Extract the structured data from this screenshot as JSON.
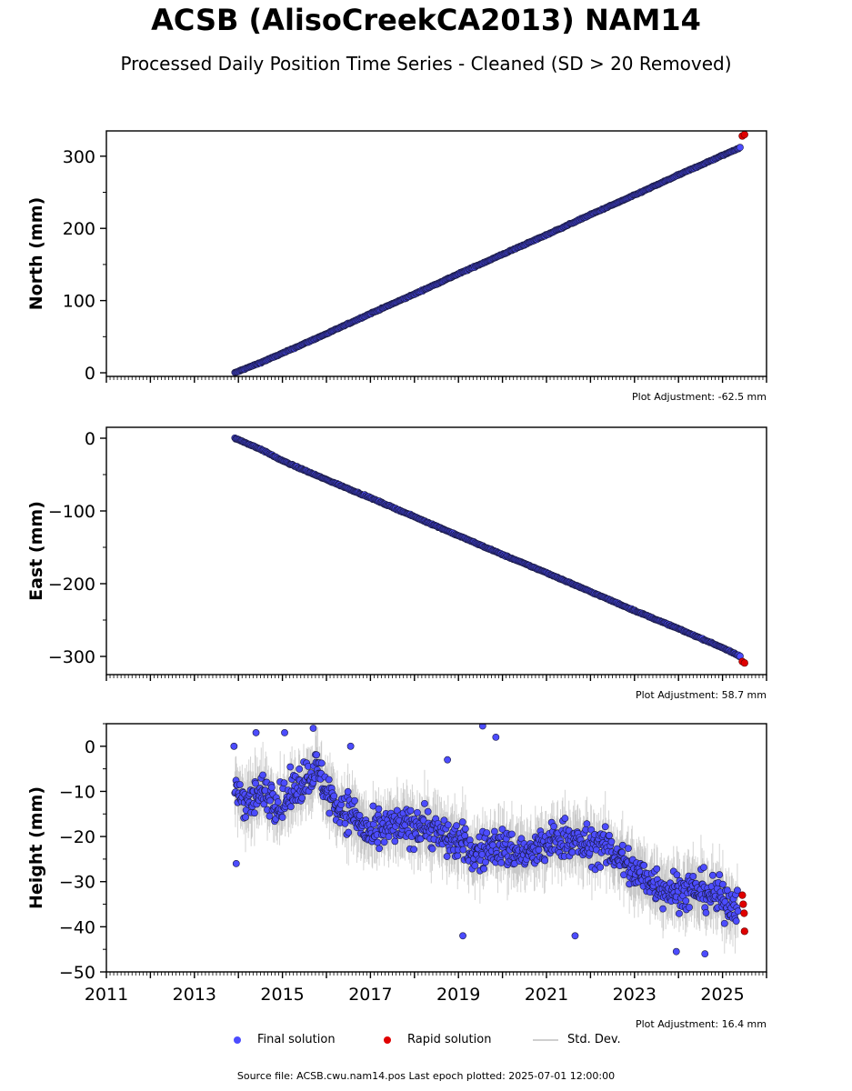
{
  "title": "ACSB (AlisoCreekCA2013) NAM14",
  "subtitle": "Processed Daily Position Time Series - Cleaned (SD > 20 Removed)",
  "footer": "Source file: ACSB.cwu.nam14.pos  Last epoch plotted: 2025-07-01 12:00:00",
  "legend": {
    "final": "Final solution",
    "rapid": "Rapid solution",
    "stddev": "Std. Dev."
  },
  "colors": {
    "final": "#4c4cff",
    "final_edge": "#1a1a40",
    "rapid": "#e00000",
    "stddev": "#b0b0b0"
  },
  "chart_data": [
    {
      "type": "scatter",
      "ylabel": "North (mm)",
      "adjustment": "Plot Adjustment: -62.5 mm",
      "xlim": [
        2011,
        2026
      ],
      "ylim": [
        -5,
        335
      ],
      "yticks": [
        0,
        100,
        200,
        300
      ],
      "series": [
        {
          "name": "Final solution",
          "x": [
            2013.92,
            2014.5,
            2015.0,
            2016.0,
            2017.0,
            2018.0,
            2019.0,
            2020.0,
            2021.0,
            2022.0,
            2023.0,
            2024.0,
            2025.0,
            2025.4
          ],
          "y": [
            0,
            14,
            27,
            54,
            82,
            109,
            137,
            164,
            191,
            219,
            246,
            274,
            301,
            312
          ]
        },
        {
          "name": "Rapid solution",
          "x": [
            2025.45,
            2025.5
          ],
          "y": [
            328,
            330
          ]
        }
      ]
    },
    {
      "type": "scatter",
      "ylabel": "East (mm)",
      "adjustment": "Plot Adjustment: 58.7 mm",
      "xlim": [
        2011,
        2026
      ],
      "ylim": [
        -325,
        15
      ],
      "yticks": [
        0,
        -100,
        -200,
        -300
      ],
      "series": [
        {
          "name": "Final solution",
          "x": [
            2013.92,
            2014.5,
            2015.0,
            2016.0,
            2017.0,
            2018.0,
            2019.0,
            2020.0,
            2021.0,
            2022.0,
            2023.0,
            2024.0,
            2025.0,
            2025.4
          ],
          "y": [
            0,
            -15,
            -31,
            -57,
            -82,
            -108,
            -134,
            -160,
            -185,
            -211,
            -237,
            -262,
            -288,
            -300
          ]
        },
        {
          "name": "Rapid solution",
          "x": [
            2025.45,
            2025.5
          ],
          "y": [
            -307,
            -309
          ]
        }
      ]
    },
    {
      "type": "scatter",
      "ylabel": "Height (mm)",
      "adjustment": "Plot Adjustment: 16.4 mm",
      "xlim": [
        2011,
        2026
      ],
      "ylim": [
        -50,
        5
      ],
      "yticks": [
        0,
        -10,
        -20,
        -30,
        -40,
        -50
      ],
      "xticks": [
        "2011",
        "2013",
        "2015",
        "2017",
        "2019",
        "2021",
        "2023",
        "2025"
      ],
      "series": [
        {
          "name": "Final solution",
          "x": [
            2013.92,
            2014.25,
            2014.6,
            2015.0,
            2015.4,
            2015.75,
            2016.2,
            2016.6,
            2017.0,
            2017.4,
            2017.8,
            2018.2,
            2018.6,
            2019.0,
            2019.4,
            2019.8,
            2020.2,
            2020.6,
            2021.0,
            2021.4,
            2021.8,
            2022.2,
            2022.6,
            2023.0,
            2023.4,
            2023.8,
            2024.2,
            2024.6,
            2025.0,
            2025.35
          ],
          "y": [
            -10,
            -12,
            -10,
            -13,
            -8,
            -5,
            -13,
            -15,
            -20,
            -18,
            -18,
            -17,
            -20,
            -21,
            -24,
            -22,
            -23,
            -24,
            -22,
            -20,
            -22,
            -22,
            -24,
            -28,
            -30,
            -32,
            -32,
            -32,
            -34,
            -35
          ]
        },
        {
          "name": "Rapid solution",
          "x": [
            2025.45,
            2025.47,
            2025.49,
            2025.5
          ],
          "y": [
            -33,
            -35,
            -37,
            -41
          ]
        }
      ]
    }
  ]
}
